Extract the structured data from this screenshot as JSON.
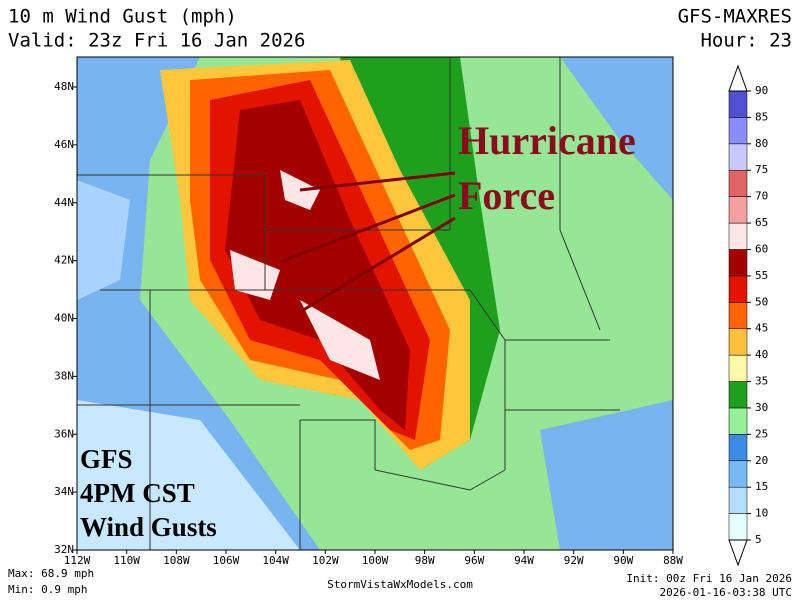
{
  "header": {
    "title": "10 m Wind Gust (mph)",
    "valid": "Valid: 23z Fri 16 Jan 2026",
    "model": "GFS-MAXRES",
    "hour": "Hour: 23"
  },
  "map": {
    "lat_labels": [
      "48N",
      "46N",
      "44N",
      "42N",
      "40N",
      "38N",
      "36N",
      "34N",
      "32N"
    ],
    "lon_labels": [
      "112W",
      "110W",
      "108W",
      "106W",
      "104W",
      "102W",
      "100W",
      "98W",
      "96W",
      "94W",
      "92W",
      "90W",
      "88W"
    ]
  },
  "annotations": [
    "Hurricane",
    "Force",
    "GFS",
    "4PM CST",
    "Wind Gusts"
  ],
  "colorbar": {
    "ticks": [
      5,
      10,
      15,
      20,
      25,
      30,
      35,
      40,
      45,
      50,
      55,
      60,
      65,
      70,
      75,
      80,
      85,
      90
    ],
    "colors": [
      "#e6ffff",
      "#b4dcff",
      "#78b9f5",
      "#3c8ce6",
      "#96f096",
      "#1ea01e",
      "#fffaaa",
      "#ffc03c",
      "#ff6400",
      "#e11400",
      "#a50000",
      "#ffe6e6",
      "#f5a0a0",
      "#e16464",
      "#c8c8ff",
      "#8c8cff",
      "#5050d0"
    ]
  },
  "footer": {
    "max": "Max: 68.9 mph",
    "min": "Min: 0.9 mph",
    "site": "StormVistaWxModels.com",
    "init": "Init: 00z Fri 16 Jan 2026",
    "timestamp": "2026-01-16-03:38 UTC"
  }
}
